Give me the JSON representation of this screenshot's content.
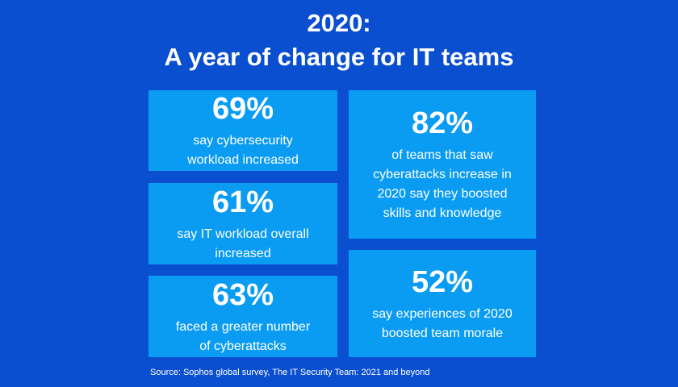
{
  "title": {
    "line1": "2020:",
    "line2": "A year of change for IT teams"
  },
  "stats": [
    {
      "percent": "69%",
      "lines": [
        "say cybersecurity",
        "workload increased"
      ]
    },
    {
      "percent": "61%",
      "lines": [
        "say IT workload overall",
        "increased"
      ]
    },
    {
      "percent": "63%",
      "lines": [
        "faced a greater number",
        "of cyberattacks"
      ]
    },
    {
      "percent": "82%",
      "lines": [
        "of teams that saw",
        "cyberattacks increase in",
        "2020 say they boosted",
        "skills and knowledge"
      ]
    },
    {
      "percent": "52%",
      "lines": [
        "say experiences of 2020",
        "boosted team morale"
      ]
    }
  ],
  "source": "Source: Sophos global survey, The IT Security Team: 2021 and beyond",
  "colors": {
    "background": "#0a4fcf",
    "card": "#0a9cf3",
    "text": "#ffffff"
  }
}
